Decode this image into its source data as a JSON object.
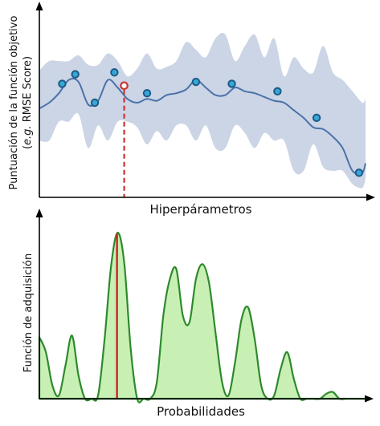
{
  "chart_data": [
    {
      "type": "line",
      "xlabel": "Hiperpárametros",
      "ylabel": "Puntuación de la función objetivo",
      "ylabel_prefix": "(",
      "ylabel_italic": "e.g.",
      "ylabel_suffix": " RMSE Score)",
      "xlim": [
        0,
        100
      ],
      "ylim": [
        0,
        100
      ],
      "grid": false,
      "colors": {
        "mean": "#4b72a8",
        "band": "#c8d3e5",
        "point_fill": "#38a7d6",
        "point_stroke": "#1c5a86",
        "highlight": "#cc3333"
      },
      "mean_curve": {
        "x": [
          0,
          3,
          6,
          9,
          12,
          15,
          18,
          21,
          24,
          27,
          30,
          33,
          36,
          39,
          42,
          45,
          48,
          51,
          54,
          57,
          60,
          63,
          66,
          69,
          72,
          75,
          78,
          81,
          84,
          87,
          90,
          93,
          96,
          99,
          100
        ],
        "y": [
          47,
          50,
          55,
          62,
          61,
          49,
          51,
          62,
          58,
          52,
          50,
          52,
          51,
          54,
          55,
          57,
          62,
          58,
          54,
          54,
          58,
          56,
          55,
          53,
          51,
          50,
          46,
          42,
          37,
          36,
          32,
          26,
          14,
          13,
          18
        ]
      },
      "band_upper": [
        67,
        72,
        72,
        72,
        75,
        70,
        70,
        76,
        72,
        64,
        68,
        76,
        68,
        69,
        72,
        82,
        78,
        74,
        84,
        86,
        72,
        80,
        86,
        74,
        84,
        64,
        74,
        68,
        66,
        80,
        66,
        62,
        56,
        50,
        52
      ],
      "band_lower": [
        30,
        30,
        40,
        40,
        44,
        26,
        38,
        30,
        40,
        40,
        37,
        28,
        35,
        30,
        38,
        38,
        30,
        38,
        26,
        26,
        38,
        34,
        26,
        34,
        30,
        30,
        14,
        14,
        28,
        16,
        14,
        14,
        7,
        5,
        10
      ],
      "observations": {
        "x": [
          7,
          11,
          17,
          23,
          33,
          48,
          59,
          73,
          85,
          98
        ],
        "y": [
          60,
          65,
          50,
          66,
          55,
          61,
          60,
          56,
          42,
          13
        ]
      },
      "highlight": {
        "x": 26,
        "y": 59
      }
    },
    {
      "type": "area",
      "xlabel": "Probabilidades",
      "ylabel": "Función de adquisición",
      "xlim": [
        0,
        100
      ],
      "ylim": [
        0,
        100
      ],
      "grid": false,
      "colors": {
        "line": "#2d8a2d",
        "fill": "#c9f0b4",
        "marker": "#cc2222"
      },
      "series": {
        "x": [
          0,
          2,
          4,
          6,
          8,
          10,
          12,
          14,
          16,
          18,
          20,
          22,
          24,
          26,
          28,
          30,
          32,
          34,
          36,
          38,
          40,
          42,
          44,
          46,
          48,
          50,
          52,
          54,
          56,
          58,
          60,
          62,
          64,
          66,
          68,
          70,
          72,
          74,
          76,
          78,
          80,
          82,
          84,
          86,
          88,
          90,
          92,
          94,
          96,
          98,
          100
        ],
        "y": [
          37,
          28,
          8,
          2,
          20,
          38,
          14,
          0,
          0,
          2,
          36,
          80,
          100,
          82,
          30,
          0,
          0,
          0,
          10,
          50,
          72,
          78,
          50,
          46,
          72,
          81,
          70,
          40,
          10,
          2,
          22,
          48,
          55,
          36,
          8,
          0,
          2,
          18,
          28,
          12,
          0,
          0,
          0,
          0,
          3,
          4,
          0,
          0,
          0,
          0,
          0
        ]
      },
      "max_marker_x": 23.8
    }
  ]
}
